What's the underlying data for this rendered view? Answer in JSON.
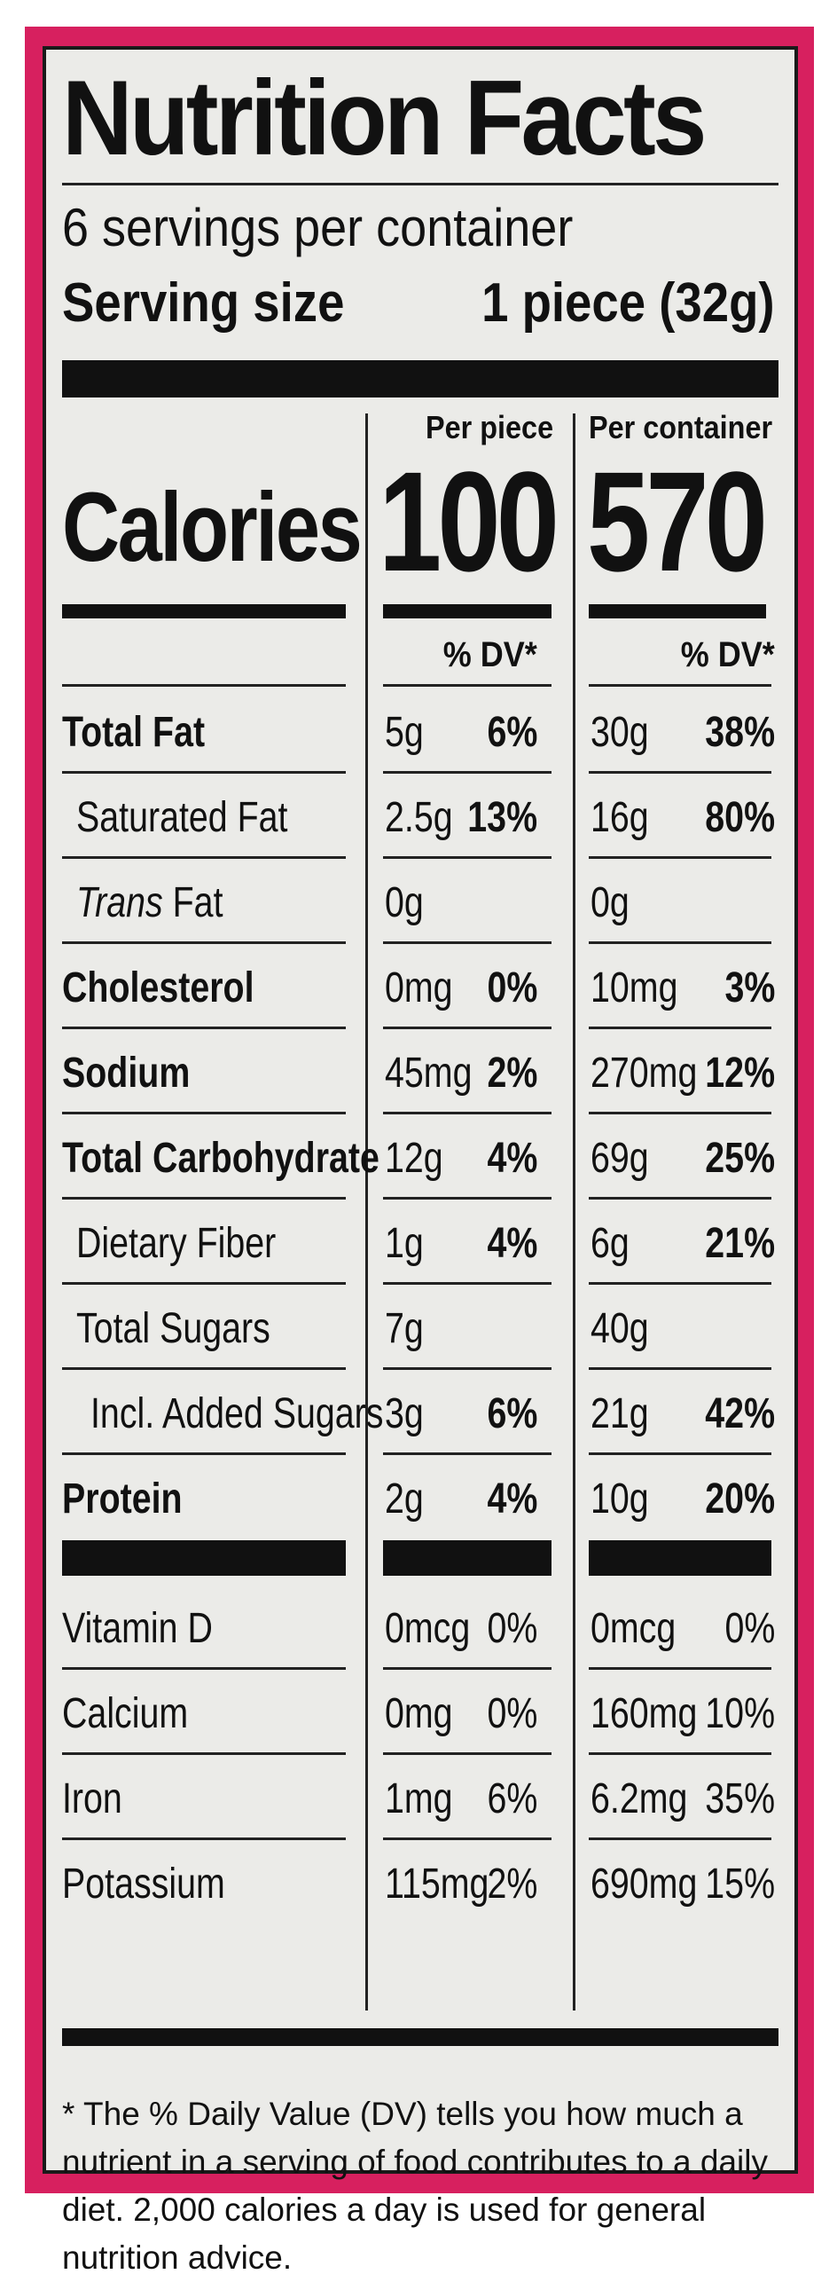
{
  "title": "Nutrition Facts",
  "servings_per_container": "6 servings per container",
  "serving_size_label": "Serving size",
  "serving_size_value": "1 piece (32g)",
  "calories_label": "Calories",
  "columns": [
    {
      "heading": "Per piece",
      "calories": "100",
      "dv_heading": "% DV*"
    },
    {
      "heading": "Per container",
      "calories": "570",
      "dv_heading": "% DV*"
    }
  ],
  "nutrients": [
    {
      "name": "Total Fat",
      "bold": true,
      "indent": 0,
      "piece_amount": "5g",
      "piece_dv": "6%",
      "container_amount": "30g",
      "container_dv": "38%"
    },
    {
      "name": "Saturated Fat",
      "bold": false,
      "indent": 1,
      "piece_amount": "2.5g",
      "piece_dv": "13%",
      "container_amount": "16g",
      "container_dv": "80%"
    },
    {
      "name_italic": "Trans",
      "name": " Fat",
      "bold": false,
      "indent": 1,
      "piece_amount": "0g",
      "piece_dv": "",
      "container_amount": "0g",
      "container_dv": ""
    },
    {
      "name": "Cholesterol",
      "bold": true,
      "indent": 0,
      "piece_amount": "0mg",
      "piece_dv": "0%",
      "container_amount": "10mg",
      "container_dv": "3%"
    },
    {
      "name": "Sodium",
      "bold": true,
      "indent": 0,
      "piece_amount": "45mg",
      "piece_dv": "2%",
      "container_amount": "270mg",
      "container_dv": "12%"
    },
    {
      "name": "Total Carbohydrate",
      "bold": true,
      "indent": 0,
      "piece_amount": "12g",
      "piece_dv": "4%",
      "container_amount": "69g",
      "container_dv": "25%"
    },
    {
      "name": "Dietary Fiber",
      "bold": false,
      "indent": 1,
      "piece_amount": "1g",
      "piece_dv": "4%",
      "container_amount": "6g",
      "container_dv": "21%"
    },
    {
      "name": "Total Sugars",
      "bold": false,
      "indent": 1,
      "piece_amount": "7g",
      "piece_dv": "",
      "container_amount": "40g",
      "container_dv": ""
    },
    {
      "name": "Incl. Added Sugars",
      "bold": false,
      "indent": 2,
      "piece_amount": "3g",
      "piece_dv": "6%",
      "container_amount": "21g",
      "container_dv": "42%"
    },
    {
      "name": "Protein",
      "bold": true,
      "indent": 0,
      "piece_amount": "2g",
      "piece_dv": "4%",
      "container_amount": "10g",
      "container_dv": "20%"
    }
  ],
  "vitamins": [
    {
      "name": "Vitamin D",
      "piece_amount": "0mcg",
      "piece_dv": "0%",
      "container_amount": "0mcg",
      "container_dv": "0%"
    },
    {
      "name": "Calcium",
      "piece_amount": "0mg",
      "piece_dv": "0%",
      "container_amount": "160mg",
      "container_dv": "10%"
    },
    {
      "name": "Iron",
      "piece_amount": "1mg",
      "piece_dv": "6%",
      "container_amount": "6.2mg",
      "container_dv": "35%"
    },
    {
      "name": "Potassium",
      "piece_amount": "115mg",
      "piece_dv": "2%",
      "container_amount": "690mg",
      "container_dv": "15%"
    }
  ],
  "footnote": "* The % Daily Value (DV) tells you how much a nutrient in a serving of food contributes to a daily diet. 2,000 calories a day is used for general nutrition advice.",
  "colors": {
    "frame": "#d7205f",
    "label_bg": "#ebebe8",
    "ink": "#111111"
  }
}
